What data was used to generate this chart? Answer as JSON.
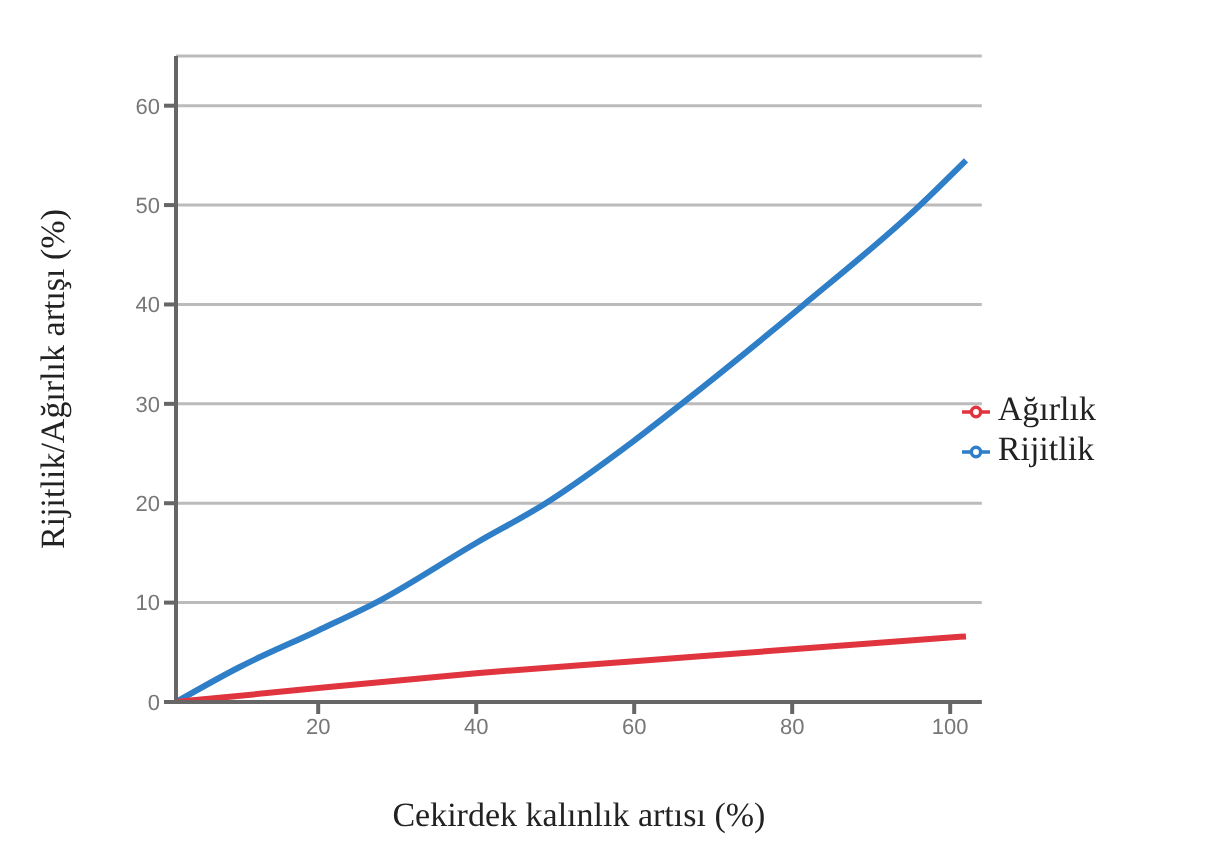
{
  "chart_data": {
    "type": "line",
    "xlabel": "Cekirdek kalınlık artısı (%)",
    "ylabel": "Rijitlik/Ağırlık artışı (%)",
    "xlim": [
      2,
      104
    ],
    "xticks": [
      20,
      40,
      60,
      80,
      100
    ],
    "ylim": [
      0,
      65
    ],
    "yticks": [
      0,
      10,
      20,
      30,
      40,
      50,
      60
    ],
    "grid": "y",
    "legend": "right",
    "marker": "none",
    "line_style": "solid",
    "series": [
      {
        "name": "Rijitlik",
        "color": "#2f7fc8",
        "x": [
          2,
          10,
          20,
          27.3,
          40,
          48.8,
          60,
          66,
          81.5,
          96.2,
          102
        ],
        "values": [
          0,
          3.5,
          7.2,
          10,
          16,
          20,
          26.3,
          30,
          40,
          50,
          54.5
        ]
      },
      {
        "name": "Ağırlık",
        "color": "#e0343f",
        "x": [
          2,
          20,
          40,
          60,
          80,
          102
        ],
        "values": [
          0,
          1.4,
          2.9,
          4.1,
          5.3,
          6.6
        ]
      }
    ]
  }
}
